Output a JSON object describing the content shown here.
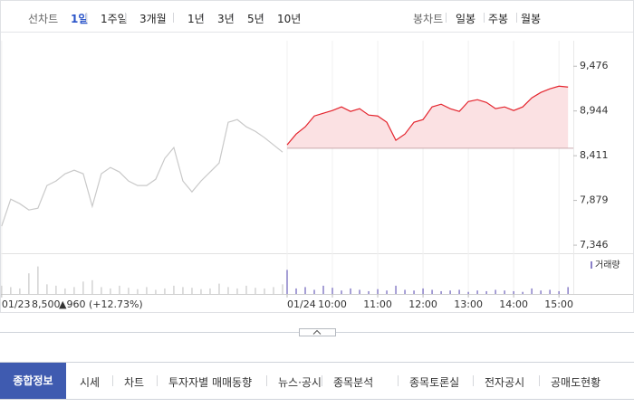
{
  "top_bar": {
    "line_label": "선차트",
    "periods": [
      "1일",
      "1주일",
      "3개월",
      "1년",
      "3년",
      "5년",
      "10년"
    ],
    "selected_period": 0,
    "candle_label": "봉차트",
    "candles": [
      "일봉",
      "주봉",
      "월봉"
    ]
  },
  "chart_data": {
    "type": "line",
    "xlim": [
      -379,
      379
    ],
    "ylim": [
      7250,
      9780
    ],
    "xticks": [
      {
        "value": -378,
        "label": "01/23"
      },
      {
        "value": 0,
        "label": "01/24"
      },
      {
        "value": 60,
        "label": "10:00"
      },
      {
        "value": 120,
        "label": "11:00"
      },
      {
        "value": 180,
        "label": "12:00"
      },
      {
        "value": 240,
        "label": "13:00"
      },
      {
        "value": 300,
        "label": "14:00"
      },
      {
        "value": 360,
        "label": "15:00"
      }
    ],
    "yticks": [
      {
        "value": 9476,
        "label": "9,476"
      },
      {
        "value": 8944,
        "label": "8,944"
      },
      {
        "value": 8411,
        "label": "8,411"
      },
      {
        "value": 7879,
        "label": "7,879"
      },
      {
        "value": 7346,
        "label": "7,346"
      }
    ],
    "reference": {
      "value": 8500,
      "label": "8,500"
    },
    "change": "▲960 (+12.73%)",
    "series": [
      {
        "color": "#c9c9c9",
        "x": [
          -378,
          -366,
          -354,
          -342,
          -330,
          -318,
          -306,
          -294,
          -282,
          -270,
          -258,
          -246,
          -234,
          -222,
          -210,
          -198,
          -186,
          -174,
          -162,
          -150,
          -138,
          -126,
          -114,
          -102,
          -90,
          -78,
          -66,
          -54,
          -42,
          -30,
          -18,
          -6
        ],
        "values": [
          7572,
          7894,
          7840,
          7765,
          7786,
          8056,
          8110,
          8196,
          8239,
          8196,
          7808,
          8196,
          8271,
          8217,
          8110,
          8056,
          8056,
          8131,
          8379,
          8508,
          8110,
          7980,
          8110,
          8217,
          8325,
          8809,
          8841,
          8755,
          8701,
          8626,
          8540,
          8454
        ]
      },
      {
        "color": "#e4242d",
        "fill": "#fbe1e3",
        "x": [
          0,
          12,
          24,
          36,
          48,
          60,
          72,
          84,
          96,
          108,
          120,
          132,
          144,
          156,
          168,
          180,
          192,
          204,
          216,
          228,
          240,
          252,
          264,
          276,
          288,
          300,
          312,
          324,
          336,
          348,
          360,
          372
        ],
        "values": [
          8540,
          8669,
          8755,
          8884,
          8917,
          8949,
          8992,
          8938,
          8971,
          8895,
          8884,
          8809,
          8594,
          8669,
          8809,
          8841,
          8992,
          9024,
          8971,
          8938,
          9056,
          9078,
          9045,
          8971,
          8992,
          8949,
          8992,
          9099,
          9164,
          9207,
          9239,
          9228
        ]
      }
    ],
    "volume": {
      "label": "거래량",
      "ylim": [
        0,
        50
      ],
      "colors": [
        "#d3d3d3",
        "#8a80c8"
      ],
      "values": [
        [
          12,
          10,
          8,
          30,
          40,
          14,
          12,
          8,
          10,
          18,
          20,
          10,
          8,
          12,
          9,
          7,
          10,
          6,
          8,
          12,
          10,
          9,
          7,
          8,
          15,
          10,
          8,
          12,
          9,
          8,
          10,
          14
        ],
        [
          35,
          8,
          10,
          6,
          12,
          9,
          5,
          8,
          6,
          4,
          7,
          5,
          12,
          6,
          5,
          8,
          6,
          4,
          5,
          6,
          3,
          5,
          4,
          6,
          5,
          4,
          3,
          8,
          5,
          6,
          4,
          10
        ]
      ]
    }
  },
  "tabs": [
    "종합정보",
    "시세",
    "차트",
    "투자자별 매매동향",
    "뉴스·공시",
    "종목분석",
    "종목토론실",
    "전자공시",
    "공매도현황"
  ],
  "selected_tab": 0
}
